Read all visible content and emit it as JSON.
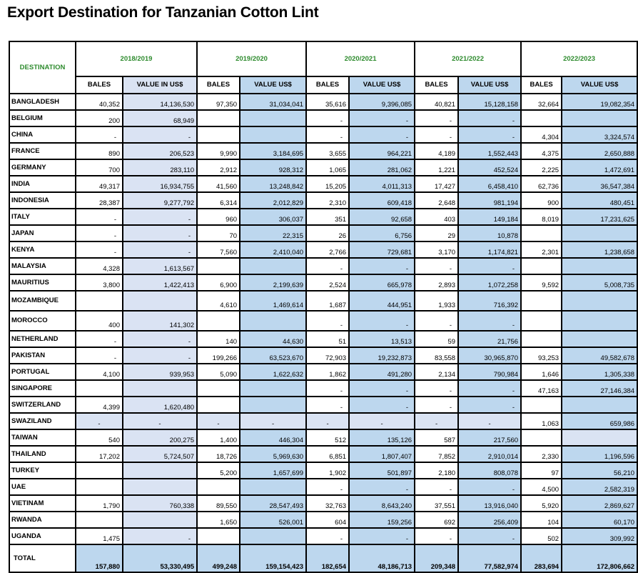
{
  "title": "Export Destination for Tanzanian Cotton Lint",
  "header": {
    "destination": "DESTINATION",
    "years": [
      "2018/2019",
      "2019/2020",
      "2020/2021",
      "2021/2022",
      "2022/2023"
    ],
    "subheaders": [
      "BALES",
      "VALUE IN US$",
      "BALES",
      "VALUE US$",
      "BALES",
      "VALUE US$",
      "BALES",
      "VALUE US$",
      "BALES",
      "VALUE US$"
    ]
  },
  "colors": {
    "header_text": "#2e8b2e",
    "value_fill": "#bdd7ee",
    "light_fill": "#dae3f3"
  },
  "rows": [
    {
      "name": "BANGLADESH",
      "values": [
        "40,352",
        "14,136,530",
        "97,350",
        "31,034,041",
        "35,616",
        "9,396,085",
        "40,821",
        "15,128,158",
        "32,664",
        "19,082,354"
      ]
    },
    {
      "name": "BELGIUM",
      "values": [
        "200",
        "68,949",
        "",
        "",
        "-",
        "-",
        "-",
        "-",
        "",
        ""
      ]
    },
    {
      "name": "CHINA",
      "values": [
        "-",
        "-",
        "",
        "",
        "-",
        "-",
        "-",
        "-",
        "4,304",
        "3,324,574"
      ]
    },
    {
      "name": "FRANCE",
      "values": [
        "890",
        "206,523",
        "9,990",
        "3,184,695",
        "3,655",
        "964,221",
        "4,189",
        "1,552,443",
        "4,375",
        "2,650,888"
      ]
    },
    {
      "name": "GERMANY",
      "values": [
        "700",
        "283,110",
        "2,912",
        "928,312",
        "1,065",
        "281,062",
        "1,221",
        "452,524",
        "2,225",
        "1,472,691"
      ]
    },
    {
      "name": "INDIA",
      "values": [
        "49,317",
        "16,934,755",
        "41,560",
        "13,248,842",
        "15,205",
        "4,011,313",
        "17,427",
        "6,458,410",
        "62,736",
        "36,547,384"
      ]
    },
    {
      "name": "INDONESIA",
      "values": [
        "28,387",
        "9,277,792",
        "6,314",
        "2,012,829",
        "2,310",
        "609,418",
        "2,648",
        "981,194",
        "900",
        "480,451"
      ]
    },
    {
      "name": "ITALY",
      "values": [
        "-",
        "-",
        "960",
        "306,037",
        "351",
        "92,658",
        "403",
        "149,184",
        "8,019",
        "17,231,625"
      ]
    },
    {
      "name": "JAPAN",
      "values": [
        "-",
        "-",
        "70",
        "22,315",
        "26",
        "6,756",
        "29",
        "10,878",
        "",
        ""
      ]
    },
    {
      "name": "KENYA",
      "values": [
        "-",
        "-",
        "7,560",
        "2,410,040",
        "2,766",
        "729,681",
        "3,170",
        "1,174,821",
        "2,301",
        "1,238,658"
      ]
    },
    {
      "name": "MALAYSIA",
      "values": [
        "4,328",
        "1,613,567",
        "",
        "",
        "-",
        "-",
        "-",
        "-",
        "",
        ""
      ]
    },
    {
      "name": "MAURITIUS",
      "values": [
        "3,800",
        "1,422,413",
        "6,900",
        "2,199,639",
        "2,524",
        "665,978",
        "2,893",
        "1,072,258",
        "9,592",
        "5,008,735"
      ]
    },
    {
      "name": "MOZAMBIQUE",
      "values": [
        "",
        "",
        "4,610",
        "1,469,614",
        "1,687",
        "444,951",
        "1,933",
        "716,392",
        "",
        ""
      ]
    },
    {
      "name": "MOROCCO",
      "values": [
        "400",
        "141,302",
        "",
        "",
        "-",
        "-",
        "-",
        "-",
        "",
        ""
      ]
    },
    {
      "name": "NETHERLAND",
      "values": [
        "-",
        "-",
        "140",
        "44,630",
        "51",
        "13,513",
        "59",
        "21,756",
        "",
        ""
      ]
    },
    {
      "name": "PAKISTAN",
      "values": [
        "-",
        "-",
        "199,266",
        "63,523,670",
        "72,903",
        "19,232,873",
        "83,558",
        "30,965,870",
        "93,253",
        "49,582,678"
      ]
    },
    {
      "name": "PORTUGAL",
      "values": [
        "4,100",
        "939,953",
        "5,090",
        "1,622,632",
        "1,862",
        "491,280",
        "2,134",
        "790,984",
        "1,646",
        "1,305,338"
      ]
    },
    {
      "name": "SINGAPORE",
      "values": [
        "",
        "",
        "",
        "",
        "-",
        "-",
        "-",
        "-",
        "47,163",
        "27,146,384"
      ]
    },
    {
      "name": "SWITZERLAND",
      "values": [
        "4,399",
        "1,620,480",
        "",
        "",
        "-",
        "-",
        "-",
        "-",
        "",
        ""
      ]
    },
    {
      "name": "SWAZILAND",
      "values": [
        "-",
        "-",
        "-",
        "-",
        "-",
        "-",
        "-",
        "-",
        "1,063",
        "659,986"
      ]
    },
    {
      "name": "TAIWAN",
      "values": [
        "540",
        "200,275",
        "1,400",
        "446,304",
        "512",
        "135,126",
        "587",
        "217,560",
        "",
        ""
      ]
    },
    {
      "name": "THAILAND",
      "values": [
        "17,202",
        "5,724,507",
        "18,726",
        "5,969,630",
        "6,851",
        "1,807,407",
        "7,852",
        "2,910,014",
        "2,330",
        "1,196,596"
      ]
    },
    {
      "name": "TURKEY",
      "values": [
        "",
        "",
        "5,200",
        "1,657,699",
        "1,902",
        "501,897",
        "2,180",
        "808,078",
        "97",
        "56,210"
      ]
    },
    {
      "name": "UAE",
      "values": [
        "",
        "",
        "",
        "",
        "-",
        "-",
        "-",
        "-",
        "4,500",
        "2,582,319"
      ]
    },
    {
      "name": "VIETINAM",
      "values": [
        "1,790",
        "760,338",
        "89,550",
        "28,547,493",
        "32,763",
        "8,643,240",
        "37,551",
        "13,916,040",
        "5,920",
        "2,869,627"
      ]
    },
    {
      "name": "RWANDA",
      "values": [
        "",
        "",
        "1,650",
        "526,001",
        "604",
        "159,256",
        "692",
        "256,409",
        "104",
        "60,170"
      ]
    },
    {
      "name": "UGANDA",
      "values": [
        "1,475",
        "-",
        "",
        "",
        "-",
        "-",
        "-",
        "-",
        "502",
        "309,992"
      ]
    }
  ],
  "total": {
    "name": "TOTAL",
    "values": [
      "157,880",
      "53,330,495",
      "499,248",
      "159,154,423",
      "182,654",
      "48,186,713",
      "209,348",
      "77,582,974",
      "283,694",
      "172,806,662"
    ]
  }
}
